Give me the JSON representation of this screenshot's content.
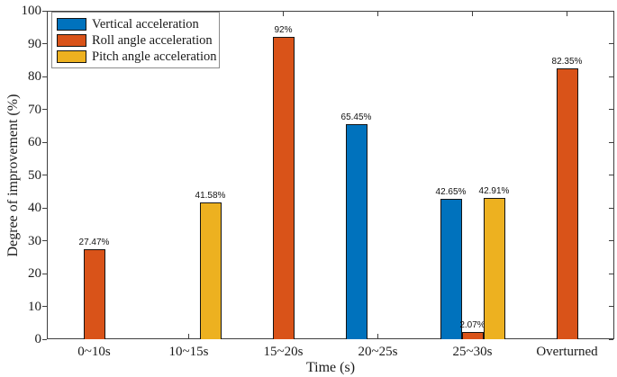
{
  "figure": {
    "background": "#ffffff",
    "axis_color": "#3f3f3f",
    "text_color": "#1a1a1a"
  },
  "chart_data": {
    "type": "bar",
    "title": "",
    "xlabel": "Time (s)",
    "ylabel": "Degree of improvement (%)",
    "ylim": [
      0,
      100
    ],
    "ytick_step": 10,
    "ytick_labels": [
      "0",
      "10",
      "20",
      "30",
      "40",
      "50",
      "60",
      "70",
      "80",
      "90",
      "100"
    ],
    "categories": [
      "0~10s",
      "10~15s",
      "15~20s",
      "20~25s",
      "25~30s",
      "Overturned"
    ],
    "grid": false,
    "legend_position": "top-left",
    "bar_edge_color": "#141414",
    "series": [
      {
        "name": "Vertical acceleration",
        "color": "#0072BD",
        "values": [
          null,
          null,
          null,
          65.45,
          42.65,
          null
        ],
        "labels": [
          null,
          null,
          null,
          "65.45%",
          "42.65%",
          null
        ]
      },
      {
        "name": "Roll angle acceleration",
        "color": "#D95319",
        "values": [
          27.47,
          null,
          92,
          null,
          2.07,
          82.35
        ],
        "labels": [
          "27.47%",
          null,
          "92%",
          null,
          "2.07%",
          "82.35%"
        ]
      },
      {
        "name": "Pitch angle acceleration",
        "color": "#EDB120",
        "values": [
          null,
          41.58,
          null,
          null,
          42.91,
          null
        ],
        "labels": [
          null,
          "41.58%",
          null,
          null,
          "42.91%",
          null
        ]
      }
    ]
  }
}
